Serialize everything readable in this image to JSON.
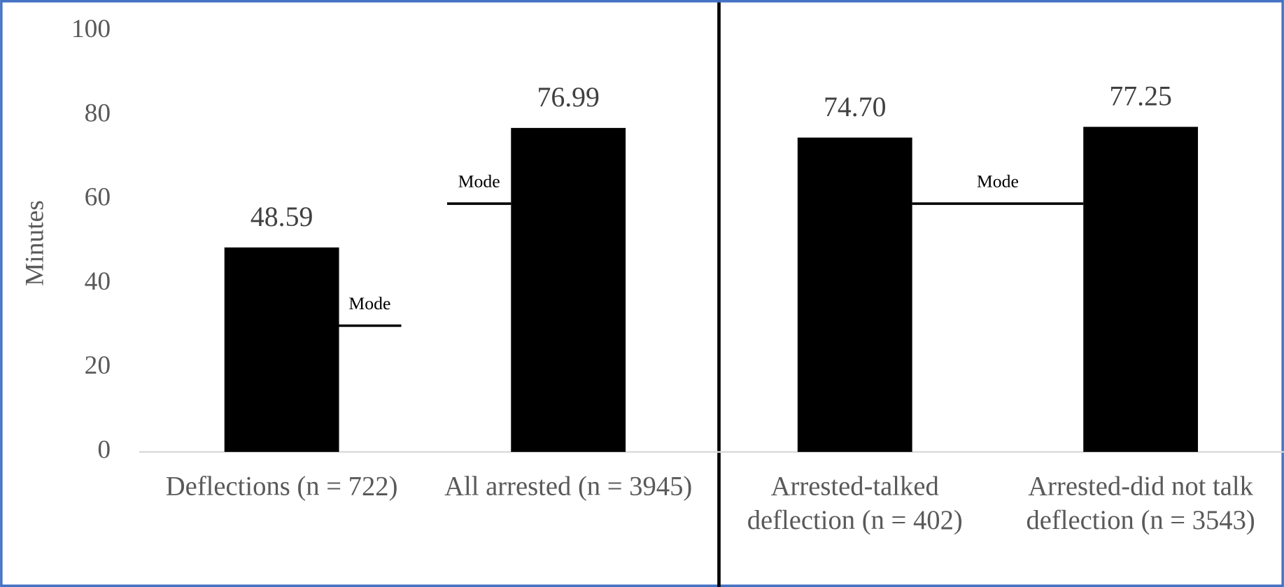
{
  "chart_data": {
    "type": "bar",
    "y_label": "Minutes",
    "categories": [
      "Deflections (n = 722)",
      "All arrested (n = 3945)",
      "Arrested-talked\ndeflection (n = 402)",
      "Arrested-did not talk\ndeflection (n = 3543)"
    ],
    "values": [
      48.59,
      76.99,
      74.7,
      77.25
    ],
    "value_labels": [
      "48.59",
      "76.99",
      "74.70",
      "77.25"
    ],
    "color": "#000000",
    "ylim": [
      0,
      100
    ],
    "yticks": [
      0,
      20,
      40,
      60,
      80,
      100
    ],
    "modes": [
      {
        "label": "Mode",
        "value": 30
      },
      {
        "label": "Mode",
        "value": 59
      },
      {
        "label": "Mode",
        "value": 59
      }
    ]
  }
}
